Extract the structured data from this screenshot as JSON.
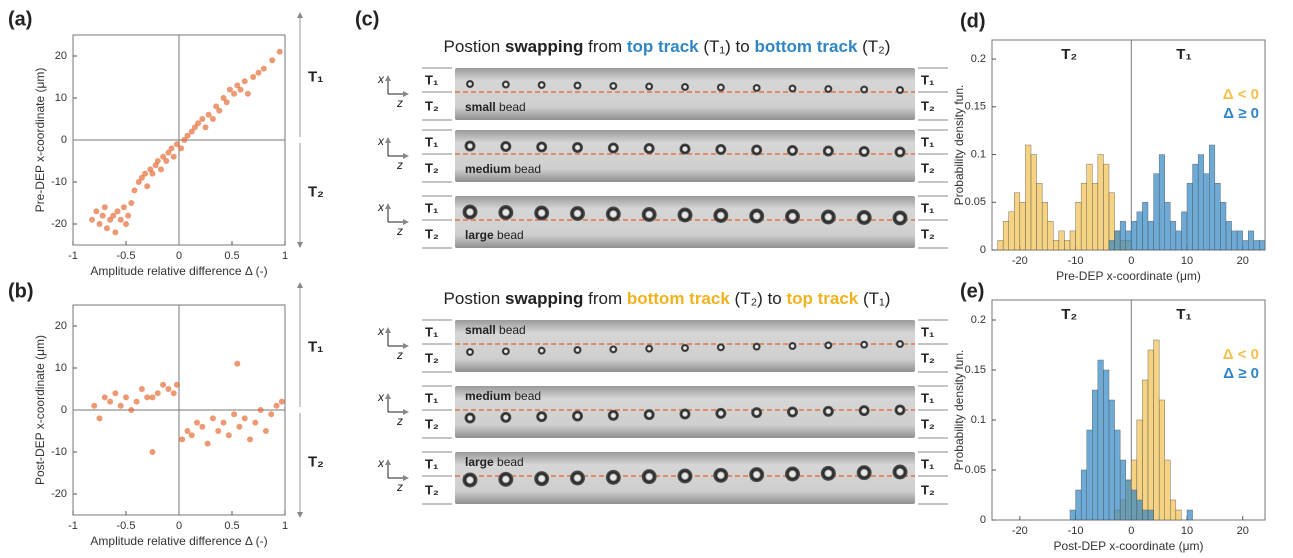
{
  "panel_labels": [
    "(a)",
    "(b)",
    "(c)",
    "(d)",
    "(e)"
  ],
  "chart_data": [
    {
      "type": "scatter",
      "xlabel": "Amplitude relative difference Δ (-)",
      "ylabel": "Pre-DEP x-coordinate (μm)",
      "color": "#e2622a",
      "xlim": [
        -1,
        1
      ],
      "ylim": [
        -25,
        25
      ],
      "xticks": [
        -1,
        -0.5,
        0,
        0.5,
        1
      ],
      "yticks": [
        -20,
        -10,
        0,
        10,
        20
      ],
      "side_labels": [
        "T₁",
        "T₂"
      ],
      "x": [
        -0.82,
        -0.78,
        -0.75,
        -0.72,
        -0.7,
        -0.68,
        -0.65,
        -0.62,
        -0.6,
        -0.58,
        -0.55,
        -0.52,
        -0.5,
        -0.48,
        -0.45,
        -0.42,
        -0.38,
        -0.35,
        -0.32,
        -0.3,
        -0.27,
        -0.25,
        -0.22,
        -0.2,
        -0.17,
        -0.15,
        -0.12,
        -0.1,
        -0.07,
        -0.05,
        -0.02,
        0.02,
        0.05,
        0.08,
        0.12,
        0.15,
        0.18,
        0.22,
        0.25,
        0.28,
        0.32,
        0.35,
        0.38,
        0.42,
        0.45,
        0.48,
        0.52,
        0.55,
        0.58,
        0.62,
        0.65,
        0.7,
        0.75,
        0.8,
        0.88,
        0.95
      ],
      "y": [
        -19,
        -17,
        -20,
        -18,
        -16,
        -21,
        -19,
        -18,
        -22,
        -17,
        -19,
        -16,
        -20,
        -18,
        -15,
        -12,
        -10,
        -9,
        -8,
        -11,
        -7,
        -8,
        -6,
        -5,
        -7,
        -4,
        -5,
        -3,
        -2,
        -4,
        -1,
        -2,
        0,
        1,
        2,
        3,
        4,
        5,
        3,
        6,
        5,
        8,
        7,
        10,
        9,
        12,
        11,
        13,
        12,
        14,
        11,
        15,
        16,
        17,
        19,
        21
      ]
    },
    {
      "type": "scatter",
      "xlabel": "Amplitude relative difference Δ (-)",
      "ylabel": "Post-DEP x-coordinate (μm)",
      "color": "#e2622a",
      "xlim": [
        -1,
        1
      ],
      "ylim": [
        -25,
        25
      ],
      "xticks": [
        -1,
        -0.5,
        0,
        0.5,
        1
      ],
      "yticks": [
        -20,
        -10,
        0,
        10,
        20
      ],
      "side_labels": [
        "T₁",
        "T₂"
      ],
      "x": [
        -0.8,
        -0.75,
        -0.7,
        -0.65,
        -0.6,
        -0.55,
        -0.5,
        -0.45,
        -0.4,
        -0.35,
        -0.3,
        -0.25,
        -0.2,
        -0.15,
        -0.1,
        -0.05,
        -0.02,
        -0.25,
        0.03,
        0.08,
        0.12,
        0.17,
        0.22,
        0.27,
        0.32,
        0.37,
        0.42,
        0.47,
        0.52,
        0.55,
        0.57,
        0.62,
        0.67,
        0.72,
        0.77,
        0.82,
        0.87,
        0.92,
        0.97
      ],
      "y": [
        1,
        -2,
        3,
        2,
        4,
        1,
        3,
        0,
        2,
        5,
        3,
        -10,
        4,
        6,
        5,
        4,
        6,
        3,
        -7,
        -5,
        -6,
        -3,
        -4,
        -8,
        -2,
        -5,
        -3,
        -6,
        -1,
        11,
        -4,
        -2,
        -7,
        -3,
        0,
        -5,
        -1,
        1,
        2
      ]
    },
    {
      "type": "histogram",
      "xlabel": "Pre-DEP x-coordinate (μm)",
      "ylabel": "Probability density fun.",
      "xlim": [
        -25,
        24
      ],
      "ylim": [
        0,
        0.22
      ],
      "xticks": [
        -20,
        -10,
        0,
        10,
        20
      ],
      "yticks": [
        0,
        0.05,
        0.1,
        0.15,
        0.2
      ],
      "region_labels": [
        "T₂",
        "T₁"
      ],
      "bins": [
        -25,
        -24,
        -23,
        -22,
        -21,
        -20,
        -19,
        -18,
        -17,
        -16,
        -15,
        -14,
        -13,
        -12,
        -11,
        -10,
        -9,
        -8,
        -7,
        -6,
        -5,
        -4,
        -3,
        -2,
        -1,
        0,
        1,
        2,
        3,
        4,
        5,
        6,
        7,
        8,
        9,
        10,
        11,
        12,
        13,
        14,
        15,
        16,
        17,
        18,
        19,
        20,
        21,
        22,
        23,
        24
      ],
      "series": [
        {
          "name": "Δ < 0",
          "color": "#f2c14e",
          "values": [
            0,
            0.01,
            0.03,
            0.04,
            0.06,
            0.05,
            0.11,
            0.1,
            0.07,
            0.05,
            0.03,
            0.01,
            0.02,
            0.01,
            0.02,
            0.05,
            0.07,
            0.09,
            0.07,
            0.1,
            0.09,
            0.06,
            0.02,
            0.01,
            0.01,
            0,
            0,
            0,
            0,
            0,
            0,
            0,
            0,
            0,
            0,
            0,
            0,
            0,
            0,
            0,
            0,
            0,
            0,
            0,
            0,
            0,
            0,
            0,
            0
          ]
        },
        {
          "name": "Δ ≥ 0",
          "color": "#2f86c4",
          "values": [
            0,
            0,
            0,
            0,
            0,
            0,
            0,
            0,
            0,
            0,
            0,
            0,
            0,
            0,
            0,
            0,
            0,
            0,
            0,
            0,
            0,
            0.01,
            0.02,
            0.03,
            0.02,
            0.03,
            0.04,
            0.05,
            0.03,
            0.08,
            0.1,
            0.05,
            0.03,
            0.02,
            0.04,
            0.07,
            0.09,
            0.1,
            0.08,
            0.11,
            0.07,
            0.05,
            0.03,
            0.02,
            0.02,
            0.01,
            0.02,
            0.01,
            0.01
          ]
        }
      ]
    },
    {
      "type": "histogram",
      "xlabel": "Post-DEP x-coordinate (μm)",
      "ylabel": "Probability density fun.",
      "xlim": [
        -25,
        24
      ],
      "ylim": [
        0,
        0.22
      ],
      "xticks": [
        -20,
        -10,
        0,
        10,
        20
      ],
      "yticks": [
        0,
        0.05,
        0.1,
        0.15,
        0.2
      ],
      "region_labels": [
        "T₂",
        "T₁"
      ],
      "bins": [
        -25,
        -24,
        -23,
        -22,
        -21,
        -20,
        -19,
        -18,
        -17,
        -16,
        -15,
        -14,
        -13,
        -12,
        -11,
        -10,
        -9,
        -8,
        -7,
        -6,
        -5,
        -4,
        -3,
        -2,
        -1,
        0,
        1,
        2,
        3,
        4,
        5,
        6,
        7,
        8,
        9,
        10,
        11,
        12,
        13,
        14,
        15,
        16,
        17,
        18,
        19,
        20,
        21,
        22,
        23,
        24
      ],
      "series": [
        {
          "name": "Δ < 0",
          "color": "#f2c14e",
          "values": [
            0,
            0,
            0,
            0,
            0,
            0,
            0,
            0,
            0,
            0,
            0,
            0,
            0,
            0,
            0,
            0,
            0,
            0,
            0,
            0,
            0,
            0,
            0.01,
            0.02,
            0.04,
            0.06,
            0.1,
            0.14,
            0.17,
            0.18,
            0.12,
            0.06,
            0.02,
            0.01,
            0,
            0,
            0,
            0,
            0,
            0,
            0,
            0,
            0,
            0,
            0,
            0,
            0,
            0,
            0
          ]
        },
        {
          "name": "Δ ≥ 0",
          "color": "#2f86c4",
          "values": [
            0,
            0,
            0,
            0,
            0,
            0,
            0,
            0,
            0,
            0,
            0,
            0,
            0,
            0,
            0.01,
            0.03,
            0.05,
            0.09,
            0.13,
            0.16,
            0.15,
            0.12,
            0.09,
            0.06,
            0.04,
            0.03,
            0.02,
            0.01,
            0.01,
            0,
            0,
            0,
            0,
            0,
            0,
            0.01,
            0,
            0,
            0,
            0,
            0,
            0,
            0,
            0,
            0,
            0,
            0,
            0,
            0
          ]
        }
      ]
    }
  ],
  "micrographs": {
    "axis_labels": [
      "x",
      "z"
    ],
    "track_labels": [
      "T₁",
      "T₂"
    ],
    "groups": [
      {
        "title_parts": [
          {
            "text": "Postion ",
            "bold": false,
            "color": "#222222"
          },
          {
            "text": "swapping",
            "bold": true,
            "color": "#222222"
          },
          {
            "text": " from ",
            "bold": false,
            "color": "#222222"
          },
          {
            "text": "top track",
            "bold": true,
            "color": "#2f86c4"
          },
          {
            "text": " (T₁) to ",
            "bold": false,
            "color": "#222222"
          },
          {
            "text": "bottom track",
            "bold": true,
            "color": "#2f86c4"
          },
          {
            "text": " (T₂)",
            "bold": false,
            "color": "#222222"
          }
        ],
        "rows": [
          [
            "small",
            " bead"
          ],
          [
            "medium",
            " bead"
          ],
          [
            "large",
            " bead"
          ]
        ]
      },
      {
        "title_parts": [
          {
            "text": "Postion ",
            "bold": false,
            "color": "#222222"
          },
          {
            "text": "swapping",
            "bold": true,
            "color": "#222222"
          },
          {
            "text": " from ",
            "bold": false,
            "color": "#222222"
          },
          {
            "text": "bottom track",
            "bold": true,
            "color": "#f2b21e"
          },
          {
            "text": " (T₂) to ",
            "bold": false,
            "color": "#222222"
          },
          {
            "text": "top track",
            "bold": true,
            "color": "#f2b21e"
          },
          {
            "text": " (T₁)",
            "bold": false,
            "color": "#222222"
          }
        ],
        "rows": [
          [
            "small",
            " bead"
          ],
          [
            "medium",
            " bead"
          ],
          [
            "large",
            " bead"
          ]
        ]
      }
    ]
  }
}
